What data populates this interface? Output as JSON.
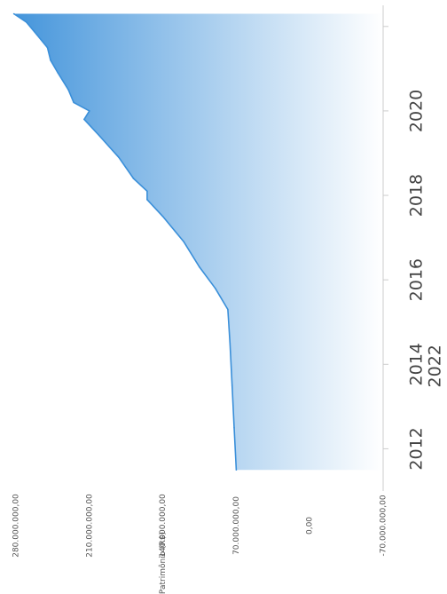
{
  "chart_data": {
    "type": "area",
    "title": "",
    "xlabel": "2022",
    "ylabel": "Patrimônio (R$)",
    "orientation": "rotated-90-clockwise",
    "grid": false,
    "legend": "none",
    "xlim": [
      2011,
      2022.5
    ],
    "ylim": [
      -70000000,
      280000000
    ],
    "x_ticks": [
      "2012",
      "2014",
      "2016",
      "2018",
      "2020"
    ],
    "x_tick_values": [
      2012,
      2014,
      2016,
      2018,
      2020
    ],
    "y_ticks": [
      "-70.000.000,00",
      "0,00",
      "70.000.000,00",
      "140.000.000,00",
      "210.000.000,00",
      "280.000.000,00"
    ],
    "y_tick_values": [
      -70000000,
      0,
      70000000,
      140000000,
      210000000,
      280000000
    ],
    "series": [
      {
        "x": [
          2011.5,
          2012.5,
          2013.5,
          2014.5,
          2015.3,
          2015.8,
          2016.3,
          2016.9,
          2017.5,
          2017.9,
          2018.1,
          2018.4,
          2018.9,
          2019.4,
          2019.8,
          2020.0,
          2020.2,
          2020.5,
          2020.9,
          2021.2,
          2021.5,
          2021.8,
          2022.1,
          2022.3
        ],
        "y": [
          70000000,
          72000000,
          74000000,
          76000000,
          78000000,
          90000000,
          105000000,
          120000000,
          140000000,
          155000000,
          155000000,
          168000000,
          182000000,
          200000000,
          215000000,
          210000000,
          225000000,
          230000000,
          240000000,
          247000000,
          250000000,
          260000000,
          270000000,
          282000000
        ]
      }
    ],
    "colors": {
      "line": "#3a8fd9",
      "fill_top": "#3a8fd9",
      "fill_bottom": "#ffffff",
      "axis": "#cccccc"
    }
  }
}
